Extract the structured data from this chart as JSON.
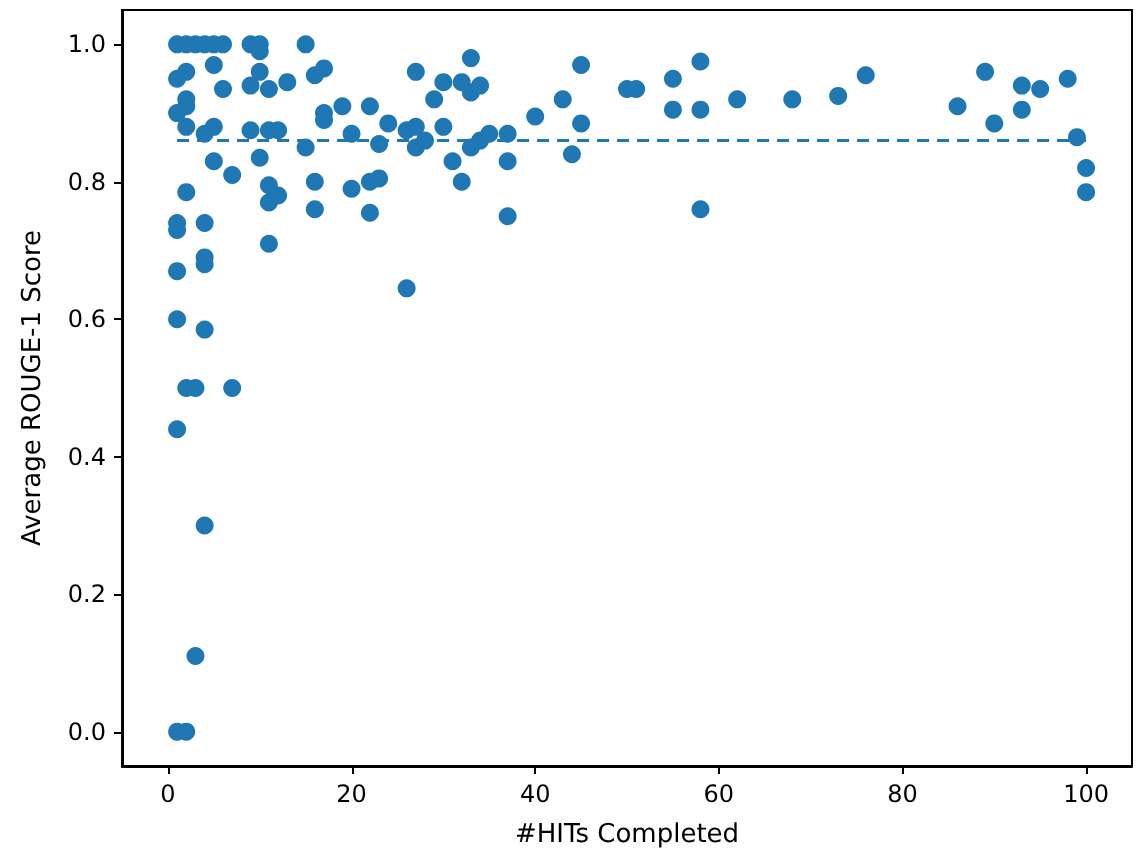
{
  "chart_data": {
    "type": "scatter",
    "xlabel": "#HITs Completed",
    "ylabel": "Average ROUGE-1 Score",
    "marker": "circle",
    "xlim": [
      -5,
      105
    ],
    "ylim": [
      -0.05,
      1.05
    ],
    "xticks": [
      0,
      20,
      40,
      60,
      80,
      100
    ],
    "yticks": [
      {
        "value": 0,
        "label": "0.0"
      },
      {
        "value": 0.2,
        "label": "0.2"
      },
      {
        "value": 0.4,
        "label": "0.4"
      },
      {
        "value": 0.6,
        "label": "0.6"
      },
      {
        "value": 0.8,
        "label": "0.8"
      },
      {
        "value": 1,
        "label": "1.0"
      }
    ],
    "series": [
      {
        "color": "#1f77b4",
        "x": [
          1,
          1,
          1,
          1,
          1,
          1,
          1,
          1,
          1,
          2,
          2,
          2,
          2,
          2,
          2,
          2,
          2,
          3,
          3,
          3,
          4,
          4,
          4,
          4,
          4,
          4,
          4,
          5,
          5,
          5,
          5,
          6,
          6,
          7,
          7,
          9,
          9,
          9,
          10,
          10,
          10,
          10,
          11,
          11,
          11,
          11,
          11,
          12,
          12,
          13,
          15,
          15,
          16,
          16,
          16,
          17,
          17,
          17,
          19,
          20,
          20,
          22,
          22,
          22,
          23,
          23,
          24,
          26,
          26,
          27,
          27,
          27,
          28,
          29,
          30,
          30,
          31,
          32,
          32,
          33,
          33,
          33,
          34,
          34,
          35,
          37,
          37,
          37,
          40,
          43,
          44,
          45,
          45,
          50,
          51,
          55,
          55,
          58,
          58,
          58,
          62,
          68,
          73,
          76,
          86,
          89,
          90,
          93,
          93,
          95,
          98,
          99,
          100,
          100
        ],
        "values": [
          1.0,
          0.95,
          0.9,
          0.74,
          0.73,
          0.67,
          0.6,
          0.44,
          0.0,
          1.0,
          0.96,
          0.92,
          0.91,
          0.88,
          0.785,
          0.5,
          0.0,
          1.0,
          0.5,
          0.11,
          1.0,
          0.87,
          0.74,
          0.69,
          0.68,
          0.585,
          0.3,
          1.0,
          0.97,
          0.88,
          0.83,
          1.0,
          0.935,
          0.81,
          0.5,
          1.0,
          0.875,
          0.94,
          1.0,
          0.99,
          0.96,
          0.835,
          0.935,
          0.875,
          0.795,
          0.77,
          0.71,
          0.875,
          0.78,
          0.945,
          1.0,
          0.85,
          0.955,
          0.8,
          0.76,
          0.965,
          0.9,
          0.89,
          0.91,
          0.87,
          0.79,
          0.91,
          0.8,
          0.755,
          0.855,
          0.805,
          0.885,
          0.875,
          0.645,
          0.96,
          0.88,
          0.85,
          0.86,
          0.92,
          0.945,
          0.88,
          0.83,
          0.945,
          0.8,
          0.98,
          0.93,
          0.85,
          0.94,
          0.86,
          0.87,
          0.87,
          0.83,
          0.75,
          0.895,
          0.92,
          0.84,
          0.97,
          0.885,
          0.935,
          0.935,
          0.95,
          0.905,
          0.975,
          0.905,
          0.76,
          0.92,
          0.92,
          0.925,
          0.955,
          0.91,
          0.96,
          0.885,
          0.94,
          0.905,
          0.935,
          0.95,
          0.865,
          0.82,
          0.785
        ]
      }
    ],
    "ref_lines": [
      {
        "axis": "y",
        "value": 0.86,
        "color": "#1f77b4",
        "line_style": "dashed"
      }
    ]
  }
}
